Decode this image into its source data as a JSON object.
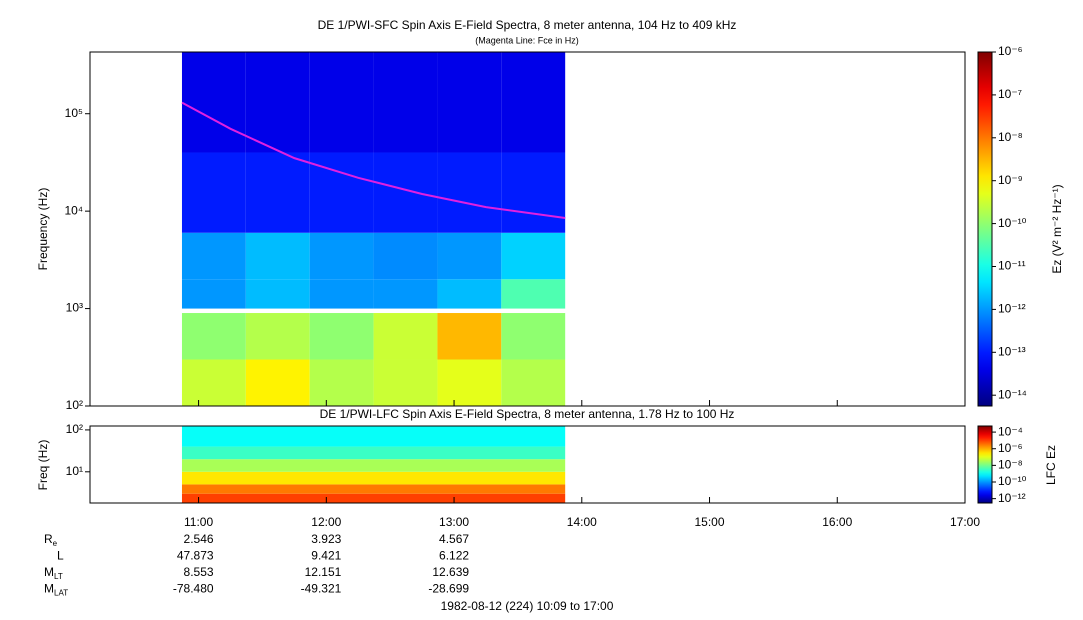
{
  "chart_data": [
    {
      "type": "heatmap",
      "title": "DE 1/PWI-SFC  Spin Axis E-Field Spectra, 8 meter antenna, 104 Hz to 409 kHz",
      "subtitle": "(Magenta Line: Fce in Hz)",
      "y_label": "Frequency (Hz)",
      "log_y": true,
      "xlim": [
        10.15,
        17
      ],
      "ylim": [
        100,
        430000
      ],
      "yticks": [
        {
          "value": 100,
          "label": "10²"
        },
        {
          "value": 1000,
          "label": "10³"
        },
        {
          "value": 10000,
          "label": "10⁴"
        },
        {
          "value": 100000,
          "label": "10⁵"
        }
      ],
      "x_bins": [
        10.87,
        11.37,
        11.87,
        12.37,
        12.87,
        13.37,
        13.87
      ],
      "y_bins": [
        100,
        300,
        900,
        1000,
        2000,
        6000,
        40000,
        430000
      ],
      "z": [
        [
          3e-10,
          1e-09,
          2e-10,
          3e-10,
          5e-10,
          2e-10
        ],
        [
          1e-10,
          2e-10,
          1e-10,
          3e-10,
          3e-09,
          1e-10
        ],
        [
          null,
          null,
          null,
          null,
          null,
          null
        ],
        [
          1e-12,
          2e-12,
          1e-12,
          1e-12,
          2e-12,
          3e-11
        ],
        [
          1e-12,
          2e-12,
          1e-12,
          8e-13,
          1e-12,
          3e-12
        ],
        [
          1e-13,
          1e-13,
          1e-13,
          1e-13,
          1e-13,
          1e-13
        ],
        [
          4e-14,
          4e-14,
          4e-14,
          4e-14,
          4e-14,
          4e-14
        ]
      ],
      "line": {
        "color": "#e020e0",
        "x": [
          10.87,
          11.25,
          11.75,
          12.25,
          12.75,
          13.25,
          13.87
        ],
        "values": [
          130000,
          70000,
          35000,
          22000,
          15000,
          11000,
          8500
        ]
      },
      "colorbar": {
        "label": "Ez (V² m⁻² Hz⁻¹)",
        "lim": [
          5.6e-15,
          1e-06
        ],
        "ticks": [
          {
            "value": 1e-06,
            "label": "10⁻⁶"
          },
          {
            "value": 1e-07,
            "label": "10⁻⁷"
          },
          {
            "value": 1e-08,
            "label": "10⁻⁸"
          },
          {
            "value": 1e-09,
            "label": "10⁻⁹"
          },
          {
            "value": 1e-10,
            "label": "10⁻¹⁰"
          },
          {
            "value": 1e-11,
            "label": "10⁻¹¹"
          },
          {
            "value": 1e-12,
            "label": "10⁻¹²"
          },
          {
            "value": 1e-13,
            "label": "10⁻¹³"
          },
          {
            "value": 1e-14,
            "label": "10⁻¹⁴"
          }
        ]
      }
    },
    {
      "type": "heatmap",
      "title": "DE 1/PWI-LFC  Spin Axis E-Field Spectra, 8 meter antenna, 1.78 Hz to 100 Hz",
      "y_label": "Freq (Hz)",
      "log_y": true,
      "xlim": [
        10.15,
        17
      ],
      "xticks": [
        {
          "value": 11,
          "label": "11:00"
        },
        {
          "value": 12,
          "label": "12:00"
        },
        {
          "value": 13,
          "label": "13:00"
        },
        {
          "value": 14,
          "label": "14:00"
        },
        {
          "value": 15,
          "label": "15:00"
        },
        {
          "value": 16,
          "label": "16:00"
        },
        {
          "value": 17,
          "label": "17:00"
        }
      ],
      "ylim": [
        1.8,
        124
      ],
      "yticks": [
        {
          "value": 10,
          "label": "10¹"
        },
        {
          "value": 100,
          "label": "10²"
        }
      ],
      "x_bins": [
        10.87,
        13.87
      ],
      "y_bins": [
        1.8,
        3,
        5,
        10,
        20,
        40,
        124
      ],
      "z": [
        [
          1e-05
        ],
        [
          3e-06
        ],
        [
          3e-07
        ],
        [
          3e-08
        ],
        [
          3e-09
        ],
        [
          1e-09
        ]
      ],
      "colorbar": {
        "label": "LFC Ez",
        "lim": [
          3e-13,
          0.00054
        ],
        "ticks": [
          {
            "value": 0.0001,
            "label": "10⁻⁴"
          },
          {
            "value": 1e-06,
            "label": "10⁻⁶"
          },
          {
            "value": 1e-08,
            "label": "10⁻⁸"
          },
          {
            "value": 1e-10,
            "label": "10⁻¹⁰"
          },
          {
            "value": 1e-12,
            "label": "10⁻¹²"
          }
        ]
      }
    }
  ],
  "ephemeris": {
    "rows": [
      {
        "label": "R",
        "sub": "e",
        "values": [
          "2.546",
          "3.923",
          "4.567"
        ]
      },
      {
        "label": "L",
        "values": [
          "47.873",
          "9.421",
          "6.122"
        ]
      },
      {
        "label": "M",
        "sub": "LT",
        "values": [
          "8.553",
          "12.151",
          "12.639"
        ]
      },
      {
        "label": "M",
        "sub": "LAT",
        "values": [
          "-78.480",
          "-49.321",
          "-28.699"
        ]
      }
    ]
  },
  "footer": "1982-08-12 (224) 10:09 to 17:00"
}
